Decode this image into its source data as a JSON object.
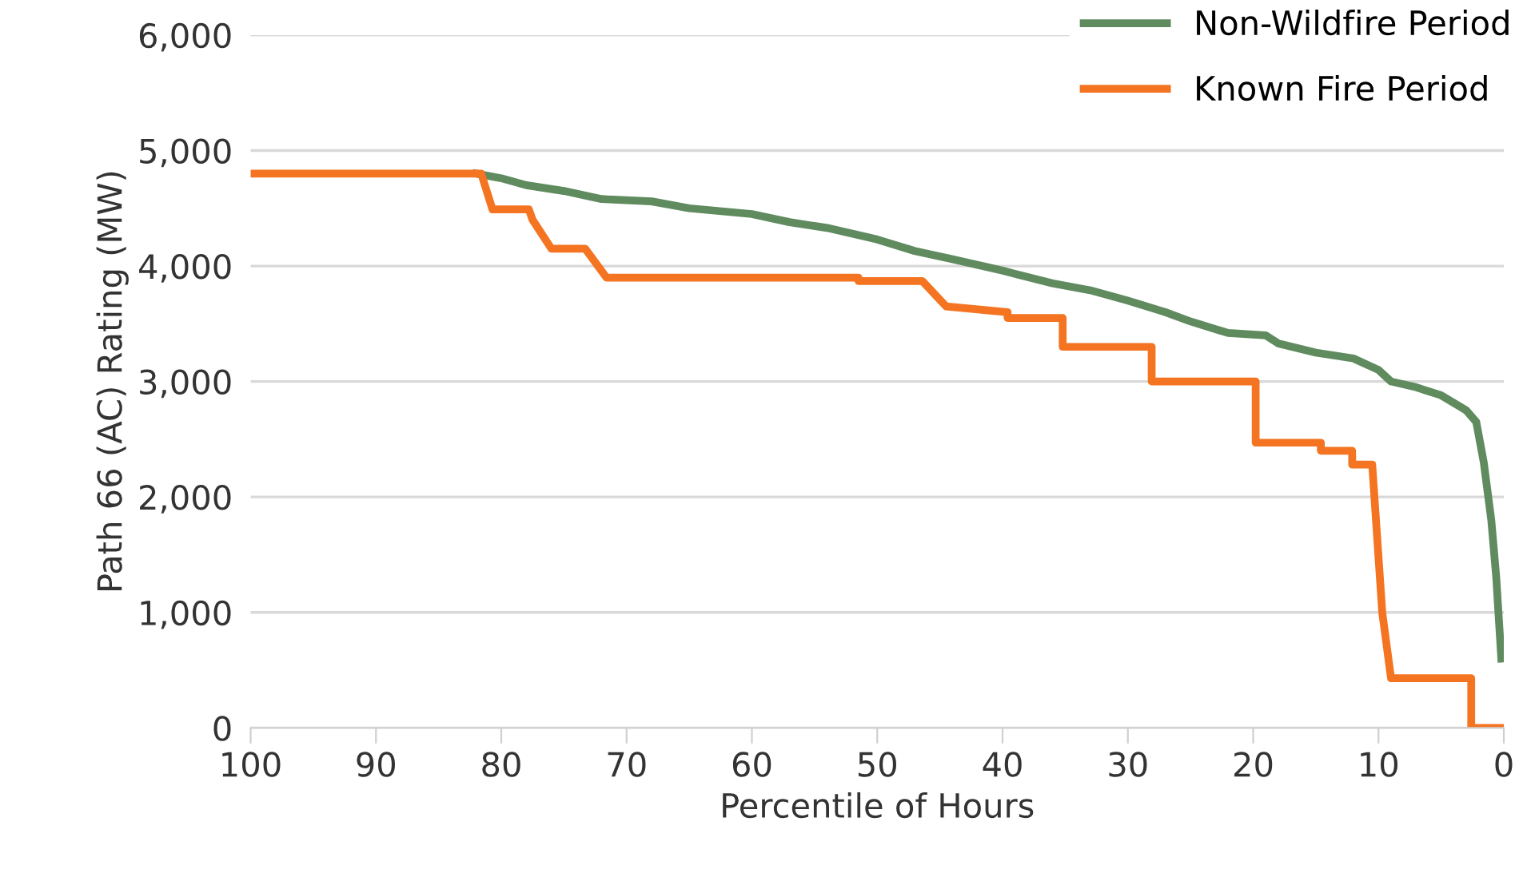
{
  "chart_data": {
    "type": "line",
    "xlabel": "Percentile of Hours",
    "ylabel": "Path 66 (AC) Rating (MW)",
    "xlim": [
      100,
      0
    ],
    "xticks": [
      100,
      90,
      80,
      70,
      60,
      50,
      40,
      30,
      20,
      10,
      0
    ],
    "ylim": [
      0,
      6000
    ],
    "yticks": [
      {
        "value": 0,
        "label": "0"
      },
      {
        "value": 1000,
        "label": "1,000"
      },
      {
        "value": 2000,
        "label": "2,000"
      },
      {
        "value": 3000,
        "label": "3,000"
      },
      {
        "value": 4000,
        "label": "4,000"
      },
      {
        "value": 5000,
        "label": "5,000"
      },
      {
        "value": 6000,
        "label": "6,000"
      }
    ],
    "grid": "y",
    "legend": "top right",
    "marker": "none",
    "line_style": "solid",
    "series": [
      {
        "name": "Non-Wildfire Period",
        "color": "#5f8b5f",
        "x": [
          82,
          80,
          78,
          75,
          72,
          68,
          65,
          60,
          57,
          54,
          50,
          47,
          44,
          40,
          36,
          33,
          30,
          27,
          25,
          22,
          19,
          18,
          15,
          12,
          10,
          9,
          7,
          5,
          3,
          2.2,
          1.6,
          1,
          0.6,
          0.2
        ],
        "values": [
          4800,
          4760,
          4700,
          4650,
          4580,
          4560,
          4500,
          4450,
          4380,
          4330,
          4230,
          4130,
          4060,
          3960,
          3850,
          3790,
          3700,
          3600,
          3520,
          3420,
          3400,
          3330,
          3250,
          3200,
          3100,
          3000,
          2950,
          2880,
          2750,
          2650,
          2300,
          1800,
          1300,
          600
        ]
      },
      {
        "name": "Known Fire Period",
        "color": "#f47421",
        "x": [
          100,
          81.6,
          80.7,
          77.8,
          77.5,
          76,
          73.3,
          71.6,
          51.5,
          51.5,
          46.4,
          44.5,
          39.6,
          39.6,
          35.2,
          35.2,
          33.5,
          28.1,
          28.1,
          19.8,
          19.8,
          14.6,
          14.6,
          12.1,
          12.1,
          10.5,
          9.7,
          9,
          2.6,
          2.6,
          0
        ],
        "values": [
          4800,
          4800,
          4490,
          4490,
          4400,
          4150,
          4150,
          3900,
          3900,
          3870,
          3870,
          3650,
          3600,
          3550,
          3550,
          3300,
          3300,
          3300,
          3000,
          3000,
          2470,
          2470,
          2400,
          2400,
          2280,
          2280,
          1000,
          430,
          430,
          0,
          0
        ]
      }
    ]
  }
}
